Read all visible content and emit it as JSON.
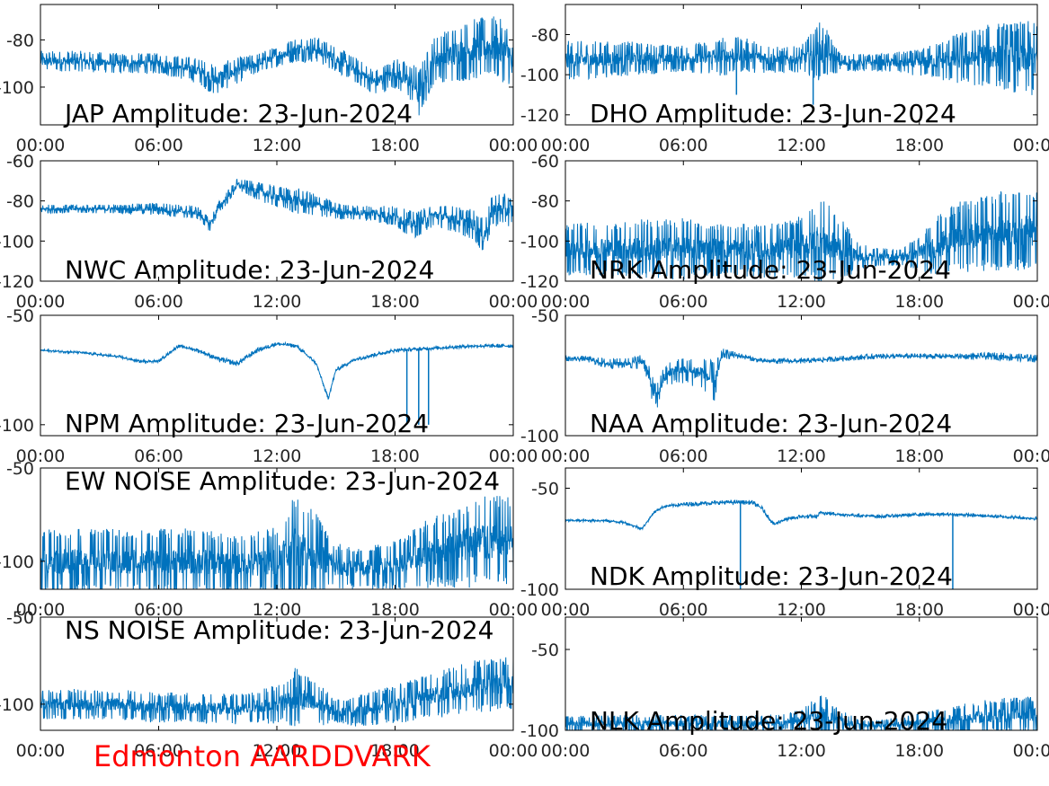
{
  "footer": {
    "text": "Edmonton AARDDVARK",
    "color": "#ff0000"
  },
  "style": {
    "line_color": "#0072bd",
    "axis_color": "#000000",
    "background": "#ffffff"
  },
  "chart_data": [
    {
      "type": "line",
      "title": "JAP Amplitude: 23-Jun-2024",
      "x_ticks": [
        "00:00",
        "06:00",
        "12:00",
        "18:00",
        "00:00"
      ],
      "y_ticks": [
        -80,
        -100
      ],
      "ylim": [
        -116,
        -65
      ],
      "xlabel": "",
      "ylabel": "",
      "grid": false,
      "series": [
        {
          "x": [
            0,
            2,
            4,
            6,
            8,
            8.8,
            10,
            11,
            12,
            13,
            14,
            15,
            16,
            17,
            18,
            19,
            19.2,
            20,
            21,
            22,
            23,
            23.8,
            24
          ],
          "y": [
            -89,
            -89,
            -90,
            -90,
            -93,
            -97,
            -93,
            -90,
            -87,
            -84,
            -84,
            -88,
            -93,
            -98,
            -94,
            -99,
            -103,
            -88,
            -86,
            -84,
            -83,
            -86,
            -95
          ],
          "noise": [
            4,
            4,
            4,
            4,
            5,
            6,
            5,
            4,
            4,
            5,
            5,
            5,
            5,
            5,
            6,
            8,
            10,
            9,
            11,
            12,
            12,
            12,
            10
          ]
        }
      ]
    },
    {
      "type": "line",
      "title": "DHO Amplitude: 23-Jun-2024",
      "x_ticks": [
        "00:00",
        "06:00",
        "12:00",
        "18:00",
        "00:00"
      ],
      "y_ticks": [
        -80,
        -100,
        -120
      ],
      "ylim": [
        -125,
        -65
      ],
      "xlabel": "",
      "ylabel": "",
      "grid": false,
      "series": [
        {
          "x": [
            0,
            3,
            6,
            8,
            9,
            11,
            12,
            13,
            14,
            16,
            18,
            20,
            22,
            24
          ],
          "y": [
            -93,
            -92,
            -92,
            -91,
            -90,
            -93,
            -92,
            -88,
            -94,
            -94,
            -94,
            -92,
            -90,
            -93
          ],
          "noise": [
            9,
            8,
            6,
            9,
            8,
            6,
            6,
            14,
            4,
            4,
            6,
            12,
            15,
            18
          ],
          "spikes": [
            [
              8.7,
              -110
            ],
            [
              12.6,
              -115
            ]
          ]
        }
      ]
    },
    {
      "type": "line",
      "title": "NWC Amplitude: 23-Jun-2024",
      "x_ticks": [
        "00:00",
        "06:00",
        "12:00",
        "18:00",
        "00:00"
      ],
      "y_ticks": [
        -60,
        -80,
        -100,
        -120
      ],
      "ylim": [
        -120,
        -60
      ],
      "xlabel": "",
      "ylabel": "",
      "grid": false,
      "series": [
        {
          "x": [
            0,
            2,
            4,
            6,
            7,
            8,
            8.6,
            9,
            10,
            11,
            12,
            13,
            14,
            15,
            16,
            17,
            18,
            19,
            20,
            21,
            22,
            22.5,
            23,
            24
          ],
          "y": [
            -84,
            -84,
            -84,
            -84,
            -85,
            -86,
            -92,
            -84,
            -72,
            -75,
            -78,
            -80,
            -82,
            -85,
            -86,
            -86,
            -88,
            -92,
            -87,
            -89,
            -92,
            -98,
            -84,
            -85
          ],
          "noise": [
            2,
            2,
            2,
            3,
            3,
            3,
            3,
            3,
            3,
            4,
            5,
            6,
            5,
            4,
            3,
            4,
            5,
            6,
            5,
            6,
            7,
            8,
            8,
            7
          ]
        }
      ]
    },
    {
      "type": "line",
      "title": "NRK Amplitude: 23-Jun-2024",
      "x_ticks": [
        "00:00",
        "06:00",
        "12:00",
        "18:00",
        "00:00"
      ],
      "y_ticks": [
        -60,
        -80,
        -100,
        -120
      ],
      "ylim": [
        -120,
        -60
      ],
      "xlabel": "",
      "ylabel": "",
      "grid": false,
      "series": [
        {
          "x": [
            0,
            2,
            4,
            6,
            8,
            10,
            12,
            13,
            14,
            15,
            16,
            17,
            18,
            19,
            20,
            22,
            24
          ],
          "y": [
            -104,
            -104,
            -104,
            -104,
            -104,
            -105,
            -103,
            -100,
            -104,
            -108,
            -108,
            -108,
            -106,
            -102,
            -98,
            -95,
            -95
          ],
          "noise": [
            12,
            12,
            14,
            14,
            12,
            12,
            14,
            20,
            14,
            6,
            4,
            4,
            8,
            14,
            16,
            18,
            18
          ]
        }
      ]
    },
    {
      "type": "line",
      "title": "NPM Amplitude: 23-Jun-2024",
      "x_ticks": [
        "00:00",
        "06:00",
        "12:00",
        "18:00",
        "00:00"
      ],
      "y_ticks": [
        -50,
        -100
      ],
      "ylim": [
        -105,
        -50
      ],
      "xlabel": "",
      "ylabel": "",
      "grid": false,
      "series": [
        {
          "x": [
            0,
            2,
            4,
            5,
            6,
            7,
            8,
            9,
            10,
            11,
            12,
            13,
            14,
            14.6,
            15,
            16,
            17,
            18,
            20,
            22,
            24
          ],
          "y": [
            -66,
            -67,
            -69,
            -71,
            -71,
            -64,
            -66,
            -70,
            -72,
            -66,
            -63,
            -64,
            -72,
            -88,
            -75,
            -70,
            -68,
            -66,
            -65,
            -64,
            -64
          ],
          "noise": [
            0.5,
            0.5,
            0.6,
            0.6,
            0.6,
            0.6,
            0.8,
            1,
            1.2,
            1,
            0.8,
            0.8,
            0.8,
            0.8,
            0.8,
            0.8,
            0.8,
            0.8,
            0.8,
            0.8,
            0.8
          ],
          "spikes": [
            [
              18.6,
              -100
            ],
            [
              19.2,
              -100
            ],
            [
              19.7,
              -100
            ]
          ]
        }
      ]
    },
    {
      "type": "line",
      "title": "NAA Amplitude: 23-Jun-2024",
      "x_ticks": [
        "00:00",
        "06:00",
        "12:00",
        "18:00",
        "00:00"
      ],
      "y_ticks": [
        -50,
        -100
      ],
      "ylim": [
        -100,
        -50
      ],
      "xlabel": "",
      "ylabel": "",
      "grid": false,
      "series": [
        {
          "x": [
            0,
            1,
            2,
            3,
            4,
            4.6,
            5,
            5.5,
            6,
            7,
            7.6,
            8,
            9,
            10,
            12,
            14,
            16,
            18,
            20,
            22,
            24
          ],
          "y": [
            -68,
            -68,
            -70,
            -70,
            -69,
            -85,
            -76,
            -73,
            -73,
            -74,
            -78,
            -66,
            -67,
            -69,
            -69,
            -68,
            -67,
            -67,
            -67,
            -67,
            -68
          ],
          "noise": [
            1,
            1,
            2,
            2,
            3,
            6,
            4,
            5,
            5,
            6,
            8,
            2,
            1,
            1,
            1,
            1,
            1,
            1,
            1,
            1.5,
            1.5
          ]
        }
      ]
    },
    {
      "type": "line",
      "title": "EW NOISE Amplitude: 23-Jun-2024",
      "x_ticks": [
        "00:00",
        "06:00",
        "12:00",
        "18:00",
        "00:00"
      ],
      "y_ticks": [
        -50,
        -100
      ],
      "ylim": [
        -115,
        -50
      ],
      "xlabel": "",
      "ylabel": "",
      "grid": false,
      "series": [
        {
          "x": [
            0,
            2,
            4,
            6,
            8,
            10,
            12,
            13,
            14,
            15,
            16,
            18,
            20,
            22,
            24
          ],
          "y": [
            -100,
            -100,
            -100,
            -100,
            -100,
            -102,
            -100,
            -92,
            -96,
            -103,
            -104,
            -102,
            -95,
            -90,
            -88
          ],
          "noise": [
            16,
            16,
            16,
            16,
            16,
            14,
            18,
            26,
            20,
            12,
            10,
            12,
            18,
            22,
            22
          ]
        }
      ]
    },
    {
      "type": "line",
      "title": "NDK Amplitude: 23-Jun-2024",
      "x_ticks": [
        "00:00",
        "06:00",
        "12:00",
        "18:00",
        "00:00"
      ],
      "y_ticks": [
        -50,
        -100
      ],
      "ylim": [
        -100,
        -40
      ],
      "xlabel": "",
      "ylabel": "",
      "grid": false,
      "series": [
        {
          "x": [
            0,
            2,
            3,
            3.9,
            4.5,
            5,
            6,
            8,
            9,
            9.5,
            10,
            10.6,
            11,
            12,
            12.8,
            13,
            14,
            16,
            18,
            20,
            22,
            24
          ],
          "y": [
            -66,
            -66,
            -67,
            -70,
            -62,
            -59,
            -58,
            -57,
            -57,
            -57,
            -60,
            -68,
            -66,
            -64,
            -64,
            -62,
            -63,
            -64,
            -63,
            -63,
            -64,
            -65
          ],
          "noise": [
            0.6,
            0.6,
            0.6,
            0.6,
            0.6,
            0.6,
            1,
            1,
            1,
            1,
            1,
            1,
            1,
            1,
            1,
            1,
            0.8,
            0.8,
            0.8,
            0.8,
            0.8,
            0.8
          ],
          "spikes": [
            [
              8.9,
              -100
            ],
            [
              19.7,
              -100
            ]
          ]
        }
      ]
    },
    {
      "type": "line",
      "title": "NS NOISE Amplitude: 23-Jun-2024",
      "x_ticks": [
        "00:00",
        "06:00",
        "12:00",
        "18:00",
        "00:00"
      ],
      "y_ticks": [
        -50,
        -100
      ],
      "ylim": [
        -115,
        -50
      ],
      "xlabel": "",
      "ylabel": "",
      "grid": false,
      "series": [
        {
          "x": [
            0,
            2,
            4,
            6,
            8,
            10,
            12,
            13,
            14,
            15,
            16,
            18,
            20,
            22,
            24
          ],
          "y": [
            -100,
            -100,
            -100,
            -102,
            -102,
            -103,
            -100,
            -96,
            -100,
            -104,
            -104,
            -100,
            -95,
            -90,
            -88
          ],
          "noise": [
            8,
            8,
            8,
            8,
            8,
            8,
            10,
            16,
            12,
            6,
            8,
            10,
            12,
            14,
            14
          ]
        }
      ]
    },
    {
      "type": "line",
      "title": "NLK Amplitude: 23-Jun-2024",
      "x_ticks": [
        "00:00",
        "06:00",
        "12:00",
        "18:00",
        "00:00"
      ],
      "y_ticks": [
        -50,
        -100
      ],
      "ylim": [
        -100,
        -30
      ],
      "xlabel": "",
      "ylabel": "",
      "grid": false,
      "series": [
        {
          "x": [
            0,
            4,
            8,
            10,
            11,
            12,
            13,
            14,
            15,
            16,
            18,
            20,
            22,
            24
          ],
          "y": [
            -96,
            -96,
            -96,
            -96,
            -95,
            -94,
            -90,
            -94,
            -97,
            -97,
            -95,
            -93,
            -91,
            -90
          ],
          "noise": [
            5,
            5,
            5,
            5,
            5,
            6,
            12,
            6,
            3,
            3,
            5,
            8,
            10,
            10
          ]
        }
      ]
    }
  ]
}
